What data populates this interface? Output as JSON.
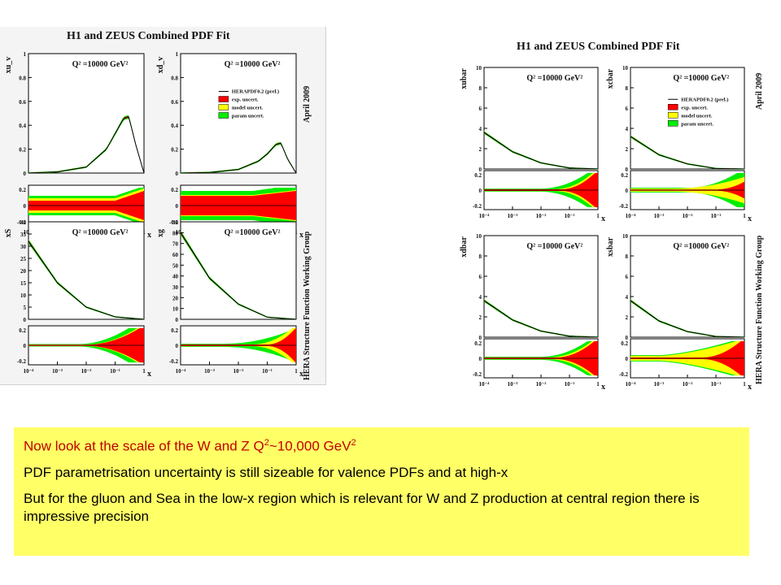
{
  "colors": {
    "exp": "#ff0000",
    "model": "#ffff00",
    "param": "#00ee00",
    "curve": "#000000",
    "textbox_bg": "#ffff66",
    "highlight_text": "#c00000"
  },
  "left_figure": {
    "title": "H1 and ZEUS Combined PDF Fit",
    "date": "April 2009",
    "group": "HERA Structure Function Working Group"
  },
  "right_figure": {
    "title": "H1 and ZEUS Combined PDF Fit",
    "date": "April 2009",
    "group": "HERA Structure Function Working Group"
  },
  "textbox": {
    "line1_prefix": "Now look at the scale of the W and Z Q",
    "line1_sup1": "2",
    "line1_mid": "~10,000 GeV",
    "line1_sup2": "2",
    "line2": "PDF parametrisation uncertainty is still sizeable for valence PDFs and at high-x",
    "line3": "But for the gluon and Sea in the low-x region which is relevant for W and Z production at central region there is impressive precision"
  },
  "chart_data": [
    {
      "type": "line",
      "figure": "left",
      "ylabel": "xu_v",
      "q2_label": "Q² =10000 GeV²",
      "x": [
        0.0001,
        0.001,
        0.01,
        0.05,
        0.1,
        0.2,
        0.3,
        0.5,
        1
      ],
      "values": [
        0.0,
        0.01,
        0.05,
        0.2,
        0.33,
        0.46,
        0.47,
        0.25,
        0.0
      ],
      "ylim": [
        0,
        1
      ],
      "yticks": [
        "0",
        "0.2",
        "0.4",
        "0.6",
        "0.8",
        "1"
      ],
      "ratio_yticks": [
        "-0.2",
        "0",
        "0.2"
      ],
      "xticks": [
        "10⁻⁴",
        "10⁻³",
        "10⁻²",
        "10⁻¹",
        "1"
      ],
      "xlabel": "x",
      "log_x": true,
      "legend": []
    },
    {
      "type": "line",
      "figure": "left",
      "ylabel": "xd_v",
      "q2_label": "Q² =10000 GeV²",
      "x": [
        0.0001,
        0.001,
        0.01,
        0.05,
        0.1,
        0.2,
        0.3,
        0.5,
        1
      ],
      "values": [
        0.0,
        0.005,
        0.03,
        0.1,
        0.16,
        0.24,
        0.25,
        0.12,
        0.0
      ],
      "ylim": [
        0,
        1
      ],
      "yticks": [
        "0",
        "0.2",
        "0.4",
        "0.6",
        "0.8",
        "1"
      ],
      "ratio_yticks": [
        "-0.2",
        "0",
        "0.2"
      ],
      "xticks": [
        "10⁻⁴",
        "10⁻³",
        "10⁻²",
        "10⁻¹",
        "1"
      ],
      "xlabel": "x",
      "log_x": true,
      "legend": [
        "HERAPDF0.2 (prel.)",
        "exp. uncert.",
        "model uncert.",
        "param uncert."
      ]
    },
    {
      "type": "line",
      "figure": "left",
      "ylabel": "xS",
      "q2_label": "Q² =10000 GeV²",
      "x": [
        0.0001,
        0.001,
        0.01,
        0.1,
        1
      ],
      "values": [
        32,
        15,
        5,
        1,
        0
      ],
      "ylim": [
        0,
        40
      ],
      "yticks": [
        "0",
        "5",
        "10",
        "15",
        "20",
        "25",
        "30",
        "35",
        "40"
      ],
      "ratio_yticks": [
        "-0.2",
        "0",
        "0.2"
      ],
      "xticks": [
        "10⁻⁴",
        "10⁻³",
        "10⁻²",
        "10⁻¹",
        "1"
      ],
      "xlabel": "x",
      "log_x": true,
      "legend": []
    },
    {
      "type": "line",
      "figure": "left",
      "ylabel": "xg",
      "q2_label": "Q² =10000 GeV²",
      "x": [
        0.0001,
        0.001,
        0.01,
        0.1,
        1
      ],
      "values": [
        80,
        38,
        14,
        2,
        0
      ],
      "ylim": [
        0,
        90
      ],
      "yticks": [
        "0",
        "10",
        "20",
        "30",
        "40",
        "50",
        "60",
        "70",
        "80",
        "90"
      ],
      "ratio_yticks": [
        "-0.2",
        "0",
        "0.2"
      ],
      "xticks": [
        "10⁻⁴",
        "10⁻³",
        "10⁻²",
        "10⁻¹",
        "1"
      ],
      "xlabel": "x",
      "log_x": true,
      "legend": []
    },
    {
      "type": "line",
      "figure": "right",
      "ylabel": "xubar",
      "q2_label": "Q² =10000 GeV²",
      "x": [
        0.0001,
        0.001,
        0.01,
        0.1,
        1
      ],
      "values": [
        3.6,
        1.7,
        0.6,
        0.1,
        0
      ],
      "ylim": [
        0,
        10
      ],
      "yticks": [
        "0",
        "2",
        "4",
        "6",
        "8",
        "10"
      ],
      "ratio_yticks": [
        "-0.2",
        "0",
        "0.2"
      ],
      "xticks": [
        "10⁻⁴",
        "10⁻³",
        "10⁻²",
        "10⁻¹",
        "1"
      ],
      "xlabel": "x",
      "log_x": true,
      "legend": []
    },
    {
      "type": "line",
      "figure": "right",
      "ylabel": "xcbar",
      "q2_label": "Q² =10000 GeV²",
      "x": [
        0.0001,
        0.001,
        0.01,
        0.1,
        1
      ],
      "values": [
        3.2,
        1.4,
        0.5,
        0.05,
        0
      ],
      "ylim": [
        0,
        10
      ],
      "yticks": [
        "0",
        "2",
        "4",
        "6",
        "8",
        "10"
      ],
      "ratio_yticks": [
        "-0.2",
        "0",
        "0.2"
      ],
      "xticks": [
        "10⁻⁴",
        "10⁻³",
        "10⁻²",
        "10⁻¹",
        "1"
      ],
      "xlabel": "x",
      "log_x": true,
      "legend": [
        "HERAPDF0.2 (prel.)",
        "exp. uncert.",
        "model uncert.",
        "param uncert."
      ]
    },
    {
      "type": "line",
      "figure": "right",
      "ylabel": "xdbar",
      "q2_label": "Q² =10000 GeV²",
      "x": [
        0.0001,
        0.001,
        0.01,
        0.1,
        1
      ],
      "values": [
        3.6,
        1.7,
        0.6,
        0.1,
        0
      ],
      "ylim": [
        0,
        10
      ],
      "yticks": [
        "0",
        "2",
        "4",
        "6",
        "8",
        "10"
      ],
      "ratio_yticks": [
        "-0.2",
        "0",
        "0.2"
      ],
      "xticks": [
        "10⁻⁴",
        "10⁻³",
        "10⁻²",
        "10⁻¹",
        "1"
      ],
      "xlabel": "x",
      "log_x": true,
      "legend": []
    },
    {
      "type": "line",
      "figure": "right",
      "ylabel": "xsbar",
      "q2_label": "Q² =10000 GeV²",
      "x": [
        0.0001,
        0.001,
        0.01,
        0.1,
        1
      ],
      "values": [
        3.6,
        1.6,
        0.55,
        0.07,
        0
      ],
      "ylim": [
        0,
        10
      ],
      "yticks": [
        "0",
        "2",
        "4",
        "6",
        "8",
        "10"
      ],
      "ratio_yticks": [
        "-0.2",
        "0",
        "0.2"
      ],
      "xticks": [
        "10⁻⁴",
        "10⁻³",
        "10⁻²",
        "10⁻¹",
        "1"
      ],
      "xlabel": "x",
      "log_x": true,
      "legend": []
    }
  ]
}
